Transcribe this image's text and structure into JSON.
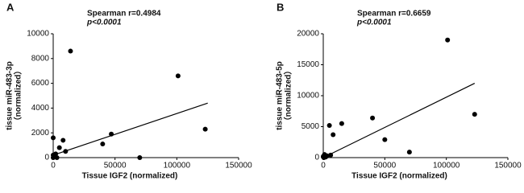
{
  "chart_data": [
    {
      "type": "scatter",
      "title": "A",
      "annotations": [
        "Spearman r=0.4984",
        "p<0.0001"
      ],
      "xlabel": "Tissue IGF2 (normalized)",
      "ylabel": [
        "tissue miR-483-3p",
        "（normalized）"
      ],
      "x": [
        0,
        0,
        500,
        1000,
        2000,
        3000,
        5000,
        8000,
        10000,
        14000,
        40000,
        47000,
        70000,
        101000,
        123000,
        0
      ],
      "y": [
        1600,
        200,
        50,
        100,
        300,
        0,
        800,
        1400,
        500,
        8600,
        1100,
        1900,
        0,
        6600,
        2300,
        0
      ],
      "fit": {
        "x": [
          0,
          125000
        ],
        "y": [
          200,
          4400
        ]
      },
      "xlim": [
        0,
        150000
      ],
      "ylim": [
        0,
        10000
      ],
      "xticks": [
        0,
        50000,
        100000,
        150000
      ],
      "yticks": [
        0,
        2000,
        4000,
        6000,
        8000,
        10000
      ]
    },
    {
      "type": "scatter",
      "title": "B",
      "annotations": [
        "Spearman r=0.6659",
        "p<0.0001"
      ],
      "xlabel": "Tissue IGF2 (normalized)",
      "ylabel": [
        "tissue miR-483-5p",
        "（normalized）"
      ],
      "x": [
        500,
        0,
        1000,
        2000,
        3000,
        6000,
        5000,
        8000,
        15000,
        40000,
        50000,
        70000,
        101000,
        123000
      ],
      "y": [
        0,
        200,
        500,
        100,
        300,
        400,
        5200,
        3700,
        5500,
        6400,
        2900,
        900,
        19000,
        7000
      ],
      "fit": {
        "x": [
          0,
          123000
        ],
        "y": [
          0,
          12000
        ]
      },
      "xlim": [
        0,
        150000
      ],
      "ylim": [
        0,
        20000
      ],
      "xticks": [
        0,
        50000,
        100000,
        150000
      ],
      "yticks": [
        0,
        5000,
        10000,
        15000,
        20000
      ]
    }
  ]
}
